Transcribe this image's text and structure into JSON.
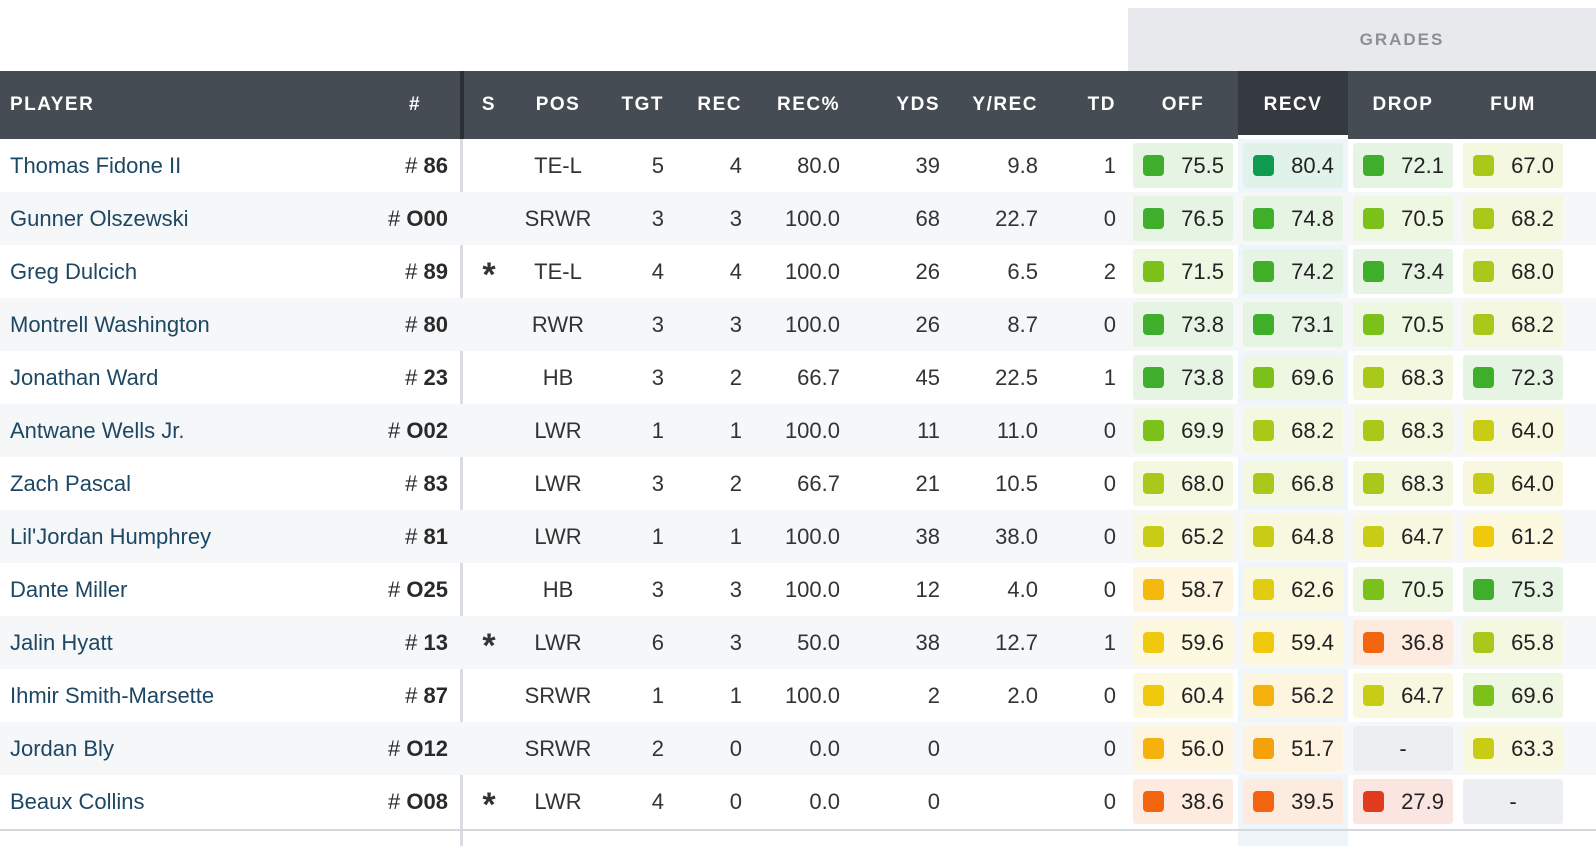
{
  "section_label": "GRADES",
  "headers": {
    "player": "PLAYER",
    "number": "#",
    "s": "S",
    "pos": "POS",
    "tgt": "TGT",
    "rec": "REC",
    "rec_pct": "REC%",
    "yds": "YDS",
    "y_rec": "Y/REC",
    "td": "TD",
    "off": "OFF",
    "recv": "RECV",
    "drop": "DROP",
    "fum": "FUM"
  },
  "active_sort_column": "RECV",
  "grade_colors": {
    "dark_green": "#0f9a52",
    "green": "#3fae2a",
    "light_green": "#7cc11a",
    "lime": "#a8c81a",
    "yellow_green": "#c9cc14",
    "yellow": "#f0c90d",
    "orange": "#f5a60d",
    "dark_orange": "#f2640e",
    "red": "#e23a1c"
  },
  "players": [
    {
      "name": "Thomas Fidone II",
      "number_prefix": "#",
      "number": "86",
      "starter": "",
      "pos": "TE-L",
      "tgt": "5",
      "rec": "4",
      "rec_pct": "80.0",
      "yds": "39",
      "y_rec": "9.8",
      "td": "1",
      "grades": [
        {
          "value": "75.5",
          "color": "#3fae2a"
        },
        {
          "value": "80.4",
          "color": "#0f9a52"
        },
        {
          "value": "72.1",
          "color": "#3fae2a"
        },
        {
          "value": "67.0",
          "color": "#a8c81a"
        }
      ]
    },
    {
      "name": "Gunner Olszewski",
      "number_prefix": "#",
      "number": "O00",
      "starter": "",
      "pos": "SRWR",
      "tgt": "3",
      "rec": "3",
      "rec_pct": "100.0",
      "yds": "68",
      "y_rec": "22.7",
      "td": "0",
      "grades": [
        {
          "value": "76.5",
          "color": "#3fae2a"
        },
        {
          "value": "74.8",
          "color": "#3fae2a"
        },
        {
          "value": "70.5",
          "color": "#7cc11a"
        },
        {
          "value": "68.2",
          "color": "#a8c81a"
        }
      ]
    },
    {
      "name": "Greg Dulcich",
      "number_prefix": "#",
      "number": "89",
      "starter": "*",
      "pos": "TE-L",
      "tgt": "4",
      "rec": "4",
      "rec_pct": "100.0",
      "yds": "26",
      "y_rec": "6.5",
      "td": "2",
      "grades": [
        {
          "value": "71.5",
          "color": "#7cc11a"
        },
        {
          "value": "74.2",
          "color": "#3fae2a"
        },
        {
          "value": "73.4",
          "color": "#3fae2a"
        },
        {
          "value": "68.0",
          "color": "#a8c81a"
        }
      ]
    },
    {
      "name": "Montrell Washington",
      "number_prefix": "#",
      "number": "80",
      "starter": "",
      "pos": "RWR",
      "tgt": "3",
      "rec": "3",
      "rec_pct": "100.0",
      "yds": "26",
      "y_rec": "8.7",
      "td": "0",
      "grades": [
        {
          "value": "73.8",
          "color": "#3fae2a"
        },
        {
          "value": "73.1",
          "color": "#3fae2a"
        },
        {
          "value": "70.5",
          "color": "#7cc11a"
        },
        {
          "value": "68.2",
          "color": "#a8c81a"
        }
      ]
    },
    {
      "name": "Jonathan Ward",
      "number_prefix": "#",
      "number": "23",
      "starter": "",
      "pos": "HB",
      "tgt": "3",
      "rec": "2",
      "rec_pct": "66.7",
      "yds": "45",
      "y_rec": "22.5",
      "td": "1",
      "grades": [
        {
          "value": "73.8",
          "color": "#3fae2a"
        },
        {
          "value": "69.6",
          "color": "#7cc11a"
        },
        {
          "value": "68.3",
          "color": "#a8c81a"
        },
        {
          "value": "72.3",
          "color": "#3fae2a"
        }
      ]
    },
    {
      "name": "Antwane Wells Jr.",
      "number_prefix": "#",
      "number": "O02",
      "starter": "",
      "pos": "LWR",
      "tgt": "1",
      "rec": "1",
      "rec_pct": "100.0",
      "yds": "11",
      "y_rec": "11.0",
      "td": "0",
      "grades": [
        {
          "value": "69.9",
          "color": "#7cc11a"
        },
        {
          "value": "68.2",
          "color": "#a8c81a"
        },
        {
          "value": "68.3",
          "color": "#a8c81a"
        },
        {
          "value": "64.0",
          "color": "#c9cc14"
        }
      ]
    },
    {
      "name": "Zach Pascal",
      "number_prefix": "#",
      "number": "83",
      "starter": "",
      "pos": "LWR",
      "tgt": "3",
      "rec": "2",
      "rec_pct": "66.7",
      "yds": "21",
      "y_rec": "10.5",
      "td": "0",
      "grades": [
        {
          "value": "68.0",
          "color": "#a8c81a"
        },
        {
          "value": "66.8",
          "color": "#a8c81a"
        },
        {
          "value": "68.3",
          "color": "#a8c81a"
        },
        {
          "value": "64.0",
          "color": "#c9cc14"
        }
      ]
    },
    {
      "name": "Lil'Jordan Humphrey",
      "number_prefix": "#",
      "number": "81",
      "starter": "",
      "pos": "LWR",
      "tgt": "1",
      "rec": "1",
      "rec_pct": "100.0",
      "yds": "38",
      "y_rec": "38.0",
      "td": "0",
      "grades": [
        {
          "value": "65.2",
          "color": "#c9cc14"
        },
        {
          "value": "64.8",
          "color": "#c9cc14"
        },
        {
          "value": "64.7",
          "color": "#c9cc14"
        },
        {
          "value": "61.2",
          "color": "#f0c90d"
        }
      ]
    },
    {
      "name": "Dante Miller",
      "number_prefix": "#",
      "number": "O25",
      "starter": "",
      "pos": "HB",
      "tgt": "3",
      "rec": "3",
      "rec_pct": "100.0",
      "yds": "12",
      "y_rec": "4.0",
      "td": "0",
      "grades": [
        {
          "value": "58.7",
          "color": "#f5b80d"
        },
        {
          "value": "62.6",
          "color": "#e0cc10"
        },
        {
          "value": "70.5",
          "color": "#7cc11a"
        },
        {
          "value": "75.3",
          "color": "#3fae2a"
        }
      ]
    },
    {
      "name": "Jalin Hyatt",
      "number_prefix": "#",
      "number": "13",
      "starter": "*",
      "pos": "LWR",
      "tgt": "6",
      "rec": "3",
      "rec_pct": "50.0",
      "yds": "38",
      "y_rec": "12.7",
      "td": "1",
      "grades": [
        {
          "value": "59.6",
          "color": "#f0c90d"
        },
        {
          "value": "59.4",
          "color": "#f0c90d"
        },
        {
          "value": "36.8",
          "color": "#f2640e"
        },
        {
          "value": "65.8",
          "color": "#a8c81a"
        }
      ]
    },
    {
      "name": "Ihmir Smith-Marsette",
      "number_prefix": "#",
      "number": "87",
      "starter": "",
      "pos": "SRWR",
      "tgt": "1",
      "rec": "1",
      "rec_pct": "100.0",
      "yds": "2",
      "y_rec": "2.0",
      "td": "0",
      "grades": [
        {
          "value": "60.4",
          "color": "#f0c90d"
        },
        {
          "value": "56.2",
          "color": "#f5b20d"
        },
        {
          "value": "64.7",
          "color": "#c9cc14"
        },
        {
          "value": "69.6",
          "color": "#7cc11a"
        }
      ]
    },
    {
      "name": "Jordan Bly",
      "number_prefix": "#",
      "number": "O12",
      "starter": "",
      "pos": "SRWR",
      "tgt": "2",
      "rec": "0",
      "rec_pct": "0.0",
      "yds": "0",
      "y_rec": "",
      "td": "0",
      "grades": [
        {
          "value": "56.0",
          "color": "#f5b20d"
        },
        {
          "value": "51.7",
          "color": "#f5a00d"
        },
        {
          "value": "-",
          "color": ""
        },
        {
          "value": "63.3",
          "color": "#c9cc14"
        }
      ]
    },
    {
      "name": "Beaux Collins",
      "number_prefix": "#",
      "number": "O08",
      "starter": "*",
      "pos": "LWR",
      "tgt": "4",
      "rec": "0",
      "rec_pct": "0.0",
      "yds": "0",
      "y_rec": "",
      "td": "0",
      "grades": [
        {
          "value": "38.6",
          "color": "#f2640e"
        },
        {
          "value": "39.5",
          "color": "#f2640e"
        },
        {
          "value": "27.9",
          "color": "#e23a1c"
        },
        {
          "value": "-",
          "color": ""
        }
      ]
    }
  ]
}
